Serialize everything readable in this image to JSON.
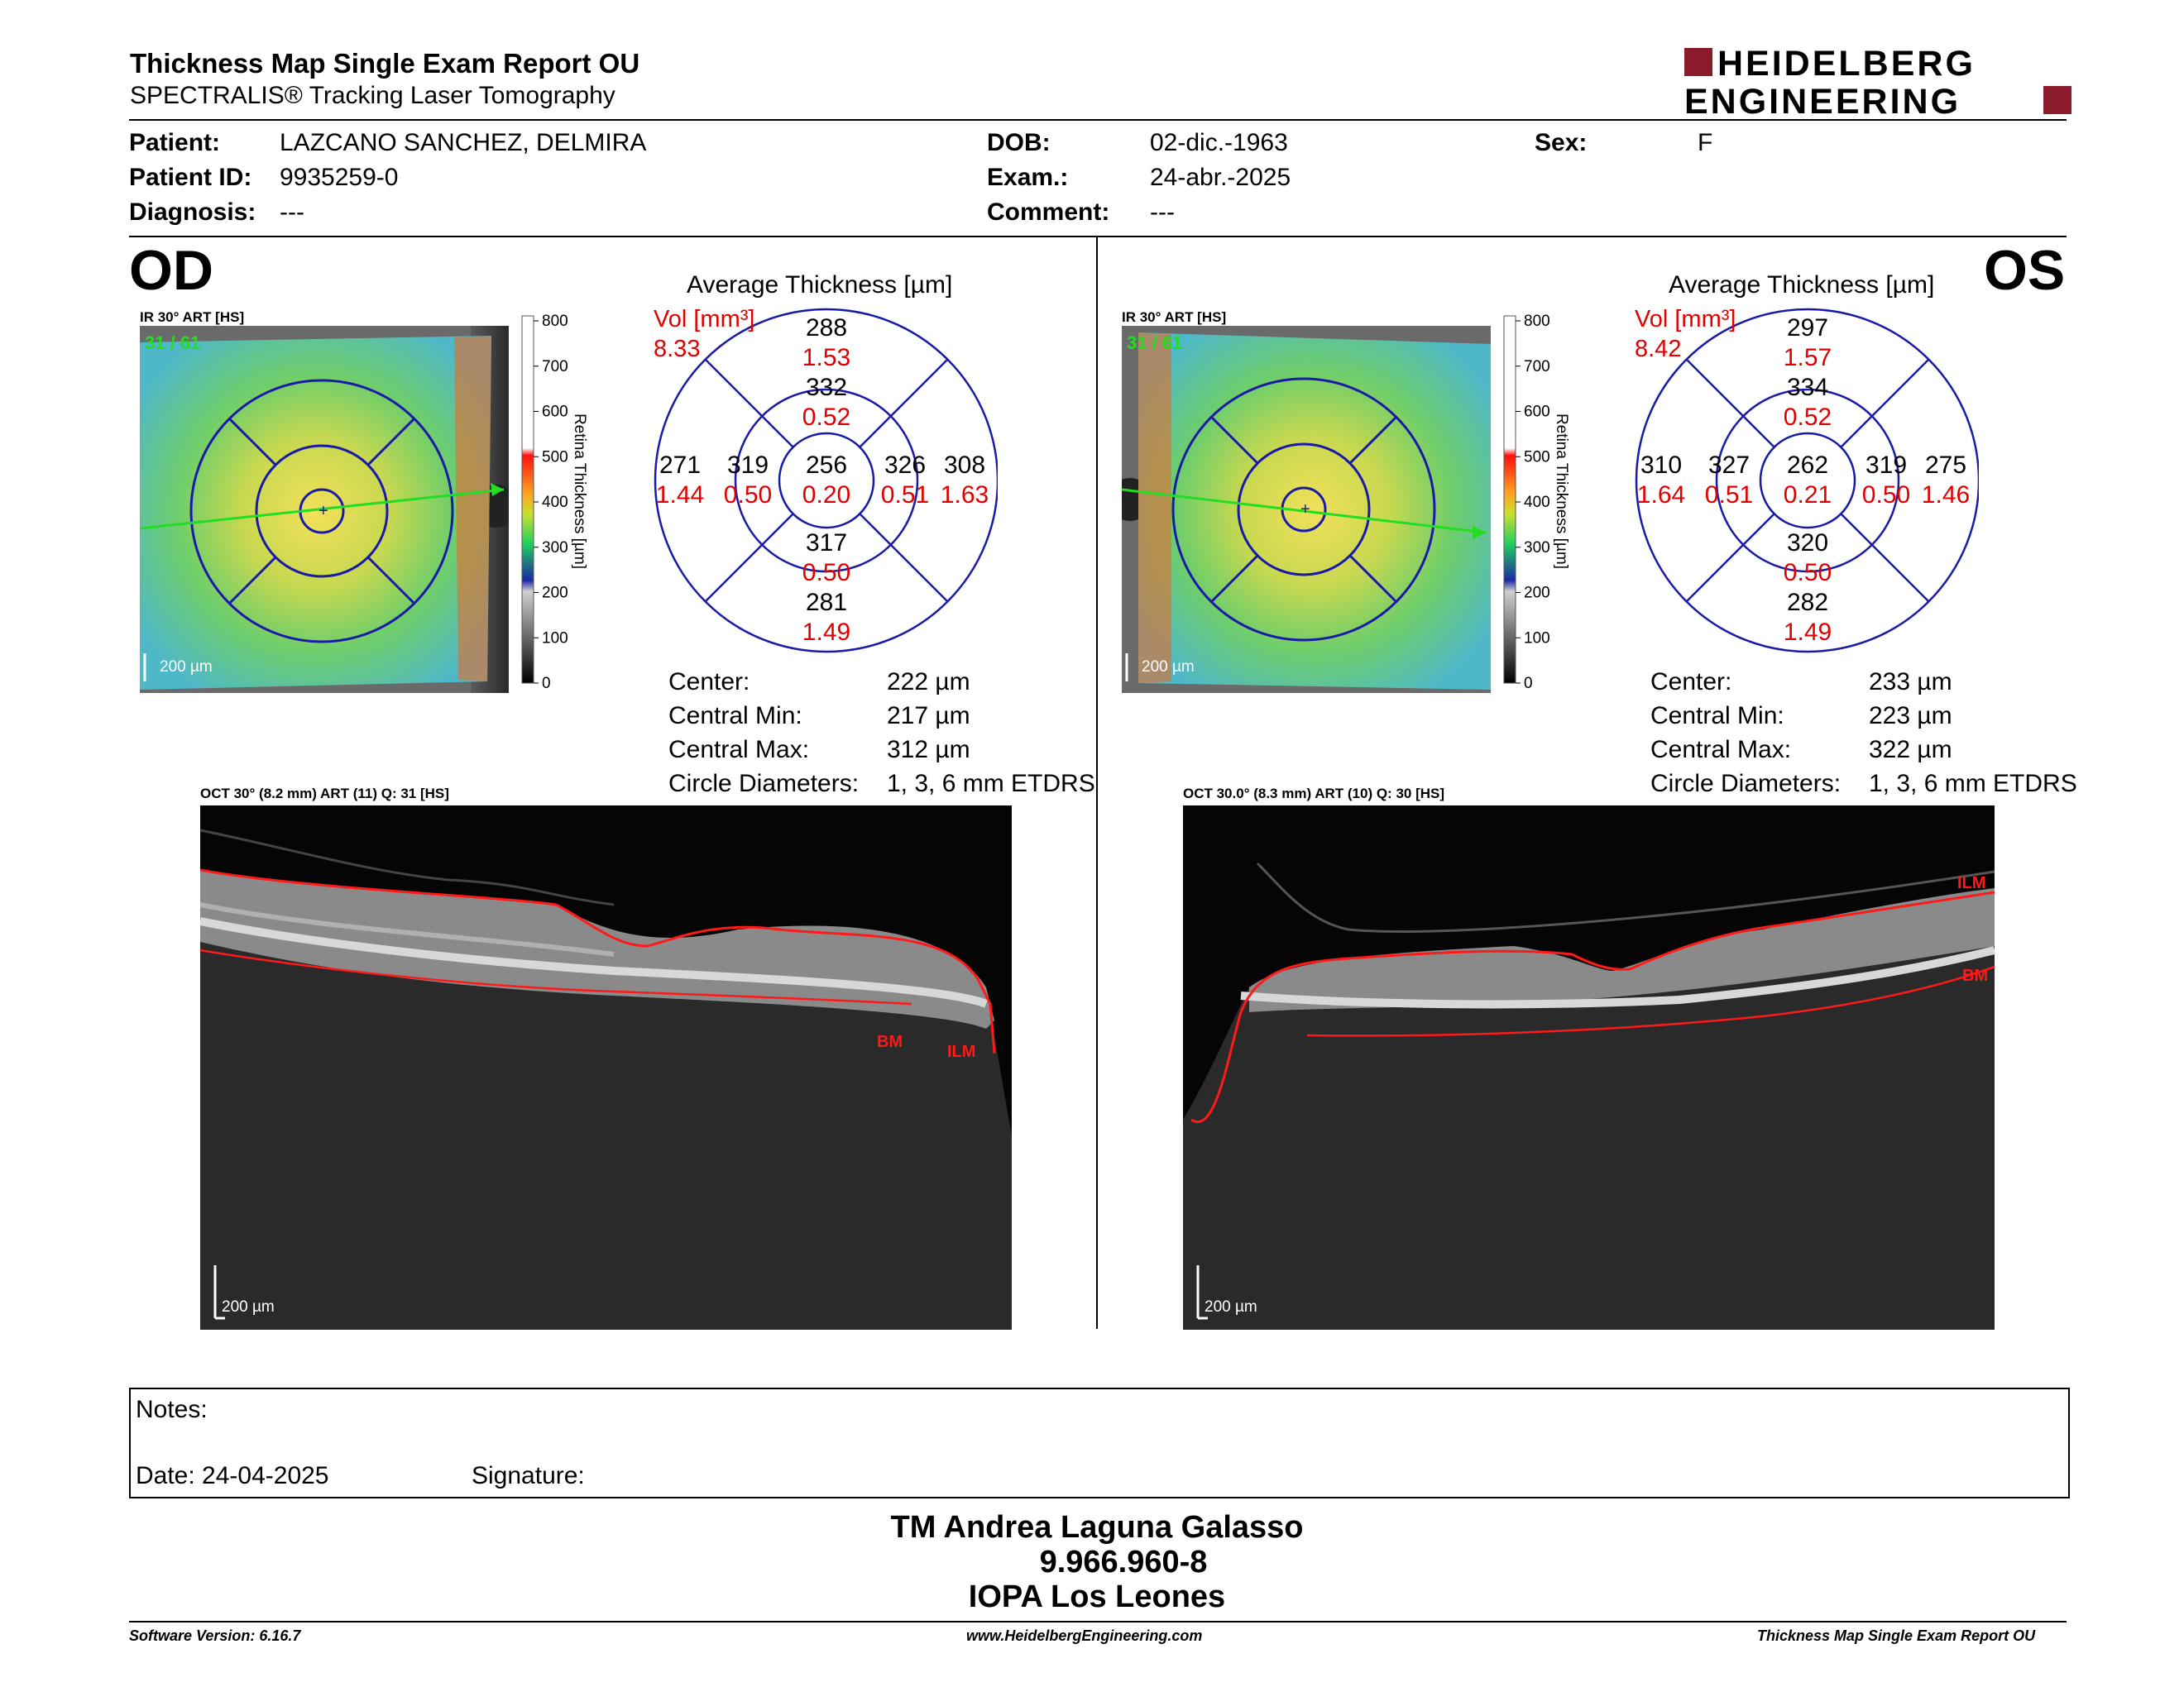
{
  "header": {
    "title": "Thickness Map Single Exam Report OU",
    "subtitle": "SPECTRALIS® Tracking Laser Tomography",
    "logo_line1": "HEIDELBERG",
    "logo_line2": "ENGINEERING",
    "brand_color": "#8b1a2b"
  },
  "patient": {
    "patient_label": "Patient:",
    "patient_value": "LAZCANO SANCHEZ, DELMIRA",
    "id_label": "Patient ID:",
    "id_value": "9935259-0",
    "diagnosis_label": "Diagnosis:",
    "diagnosis_value": "---",
    "dob_label": "DOB:",
    "dob_value": "02-dic.-1963",
    "exam_label": "Exam.:",
    "exam_value": "24-abr.-2025",
    "comment_label": "Comment:",
    "comment_value": "---",
    "sex_label": "Sex:",
    "sex_value": "F"
  },
  "od": {
    "eye_label": "OD",
    "ir_title": "IR 30° ART [HS]",
    "ir_frames": "31 / 61",
    "ir_scale": "200 µm",
    "colorbar_ticks": [
      "800",
      "700",
      "600",
      "500",
      "400",
      "300",
      "200",
      "100",
      "0"
    ],
    "colorbar_label": "Retina Thickness [µm]",
    "avg_title": "Average Thickness [µm]",
    "vol_label": "Vol [mm³]",
    "vol_value": "8.33",
    "sectors": {
      "outer_top": {
        "t": "288",
        "v": "1.53"
      },
      "inner_top": {
        "t": "332",
        "v": "0.52"
      },
      "outer_left": {
        "t": "271",
        "v": "1.44"
      },
      "inner_left": {
        "t": "319",
        "v": "0.50"
      },
      "center": {
        "t": "256",
        "v": "0.20"
      },
      "inner_right": {
        "t": "326",
        "v": "0.51"
      },
      "outer_right": {
        "t": "308",
        "v": "1.63"
      },
      "inner_bottom": {
        "t": "317",
        "v": "0.50"
      },
      "outer_bottom": {
        "t": "281",
        "v": "1.49"
      }
    },
    "stats": {
      "center_label": "Center:",
      "center_value": "222 µm",
      "min_label": "Central Min:",
      "min_value": "217 µm",
      "max_label": "Central Max:",
      "max_value": "312 µm",
      "circ_label": "Circle Diameters:",
      "circ_value": "1, 3, 6 mm ETDRS"
    },
    "oct_title": "OCT 30° (8.2 mm) ART (11) Q: 31 [HS]",
    "oct_scale": "200 µm",
    "label_bm": "BM",
    "label_ilm": "ILM"
  },
  "os": {
    "eye_label": "OS",
    "ir_title": "IR 30° ART [HS]",
    "ir_frames": "31 / 61",
    "ir_scale": "200 µm",
    "colorbar_ticks": [
      "800",
      "700",
      "600",
      "500",
      "400",
      "300",
      "200",
      "100",
      "0"
    ],
    "colorbar_label": "Retina Thickness [µm]",
    "avg_title": "Average Thickness [µm]",
    "vol_label": "Vol [mm³]",
    "vol_value": "8.42",
    "sectors": {
      "outer_top": {
        "t": "297",
        "v": "1.57"
      },
      "inner_top": {
        "t": "334",
        "v": "0.52"
      },
      "outer_left": {
        "t": "310",
        "v": "1.64"
      },
      "inner_left": {
        "t": "327",
        "v": "0.51"
      },
      "center": {
        "t": "262",
        "v": "0.21"
      },
      "inner_right": {
        "t": "319",
        "v": "0.50"
      },
      "outer_right": {
        "t": "275",
        "v": "1.46"
      },
      "inner_bottom": {
        "t": "320",
        "v": "0.50"
      },
      "outer_bottom": {
        "t": "282",
        "v": "1.49"
      }
    },
    "stats": {
      "center_label": "Center:",
      "center_value": "233 µm",
      "min_label": "Central Min:",
      "min_value": "223 µm",
      "max_label": "Central Max:",
      "max_value": "322 µm",
      "circ_label": "Circle Diameters:",
      "circ_value": "1, 3, 6 mm ETDRS"
    },
    "oct_title": "OCT 30.0° (8.3 mm) ART (10) Q: 30 [HS]",
    "oct_scale": "200 µm",
    "label_bm": "BM",
    "label_ilm": "ILM"
  },
  "notes": {
    "notes_label": "Notes:",
    "date_label": "Date: 24-04-2025",
    "signature_label": "Signature:"
  },
  "signature": {
    "name": "TM Andrea Laguna Galasso",
    "rut": "9.966.960-8",
    "org": "IOPA Los Leones"
  },
  "footer": {
    "software": "Software Version: 6.16.7",
    "website": "www.HeidelbergEngineering.com",
    "report": "Thickness Map Single Exam Report OU"
  },
  "colors": {
    "volume_red": "#e00000",
    "grid_blue": "#1a1aa8",
    "segmentation_red": "#ff1a1a",
    "scan_green": "#22dd22"
  }
}
